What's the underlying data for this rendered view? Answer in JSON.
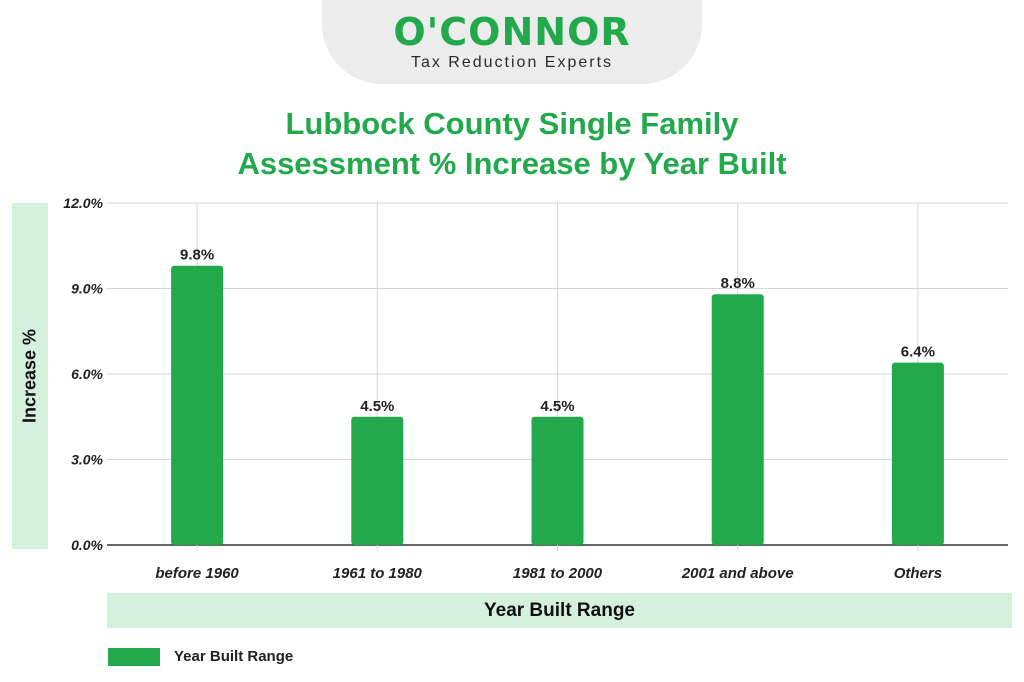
{
  "logo": {
    "name": "O'CONNOR",
    "tagline": "Tax Reduction Experts"
  },
  "chart_data": {
    "type": "bar",
    "title": [
      "Lubbock County Single Family",
      "Assessment % Increase by Year Built"
    ],
    "xlabel": "Year Built Range",
    "ylabel": "Increase %",
    "categories": [
      "before 1960",
      "1961 to 1980",
      "1981 to 2000",
      "2001 and above",
      "Others"
    ],
    "series": [
      {
        "name": "Year Built Range",
        "values": [
          9.8,
          4.5,
          4.5,
          8.8,
          6.4
        ],
        "labels": [
          "9.8%",
          "4.5%",
          "4.5%",
          "8.8%",
          "6.4%"
        ]
      }
    ],
    "ylim": [
      0,
      12
    ],
    "yticks": [
      "0.0%",
      "3.0%",
      "6.0%",
      "9.0%",
      "12.0%"
    ],
    "ytick_values": [
      0,
      3,
      6,
      9,
      12
    ],
    "grid": true,
    "legend_position": "bottom-left",
    "colors": {
      "bar": "#22a94b",
      "band": "#d5f1db",
      "title": "#22a94b"
    }
  }
}
